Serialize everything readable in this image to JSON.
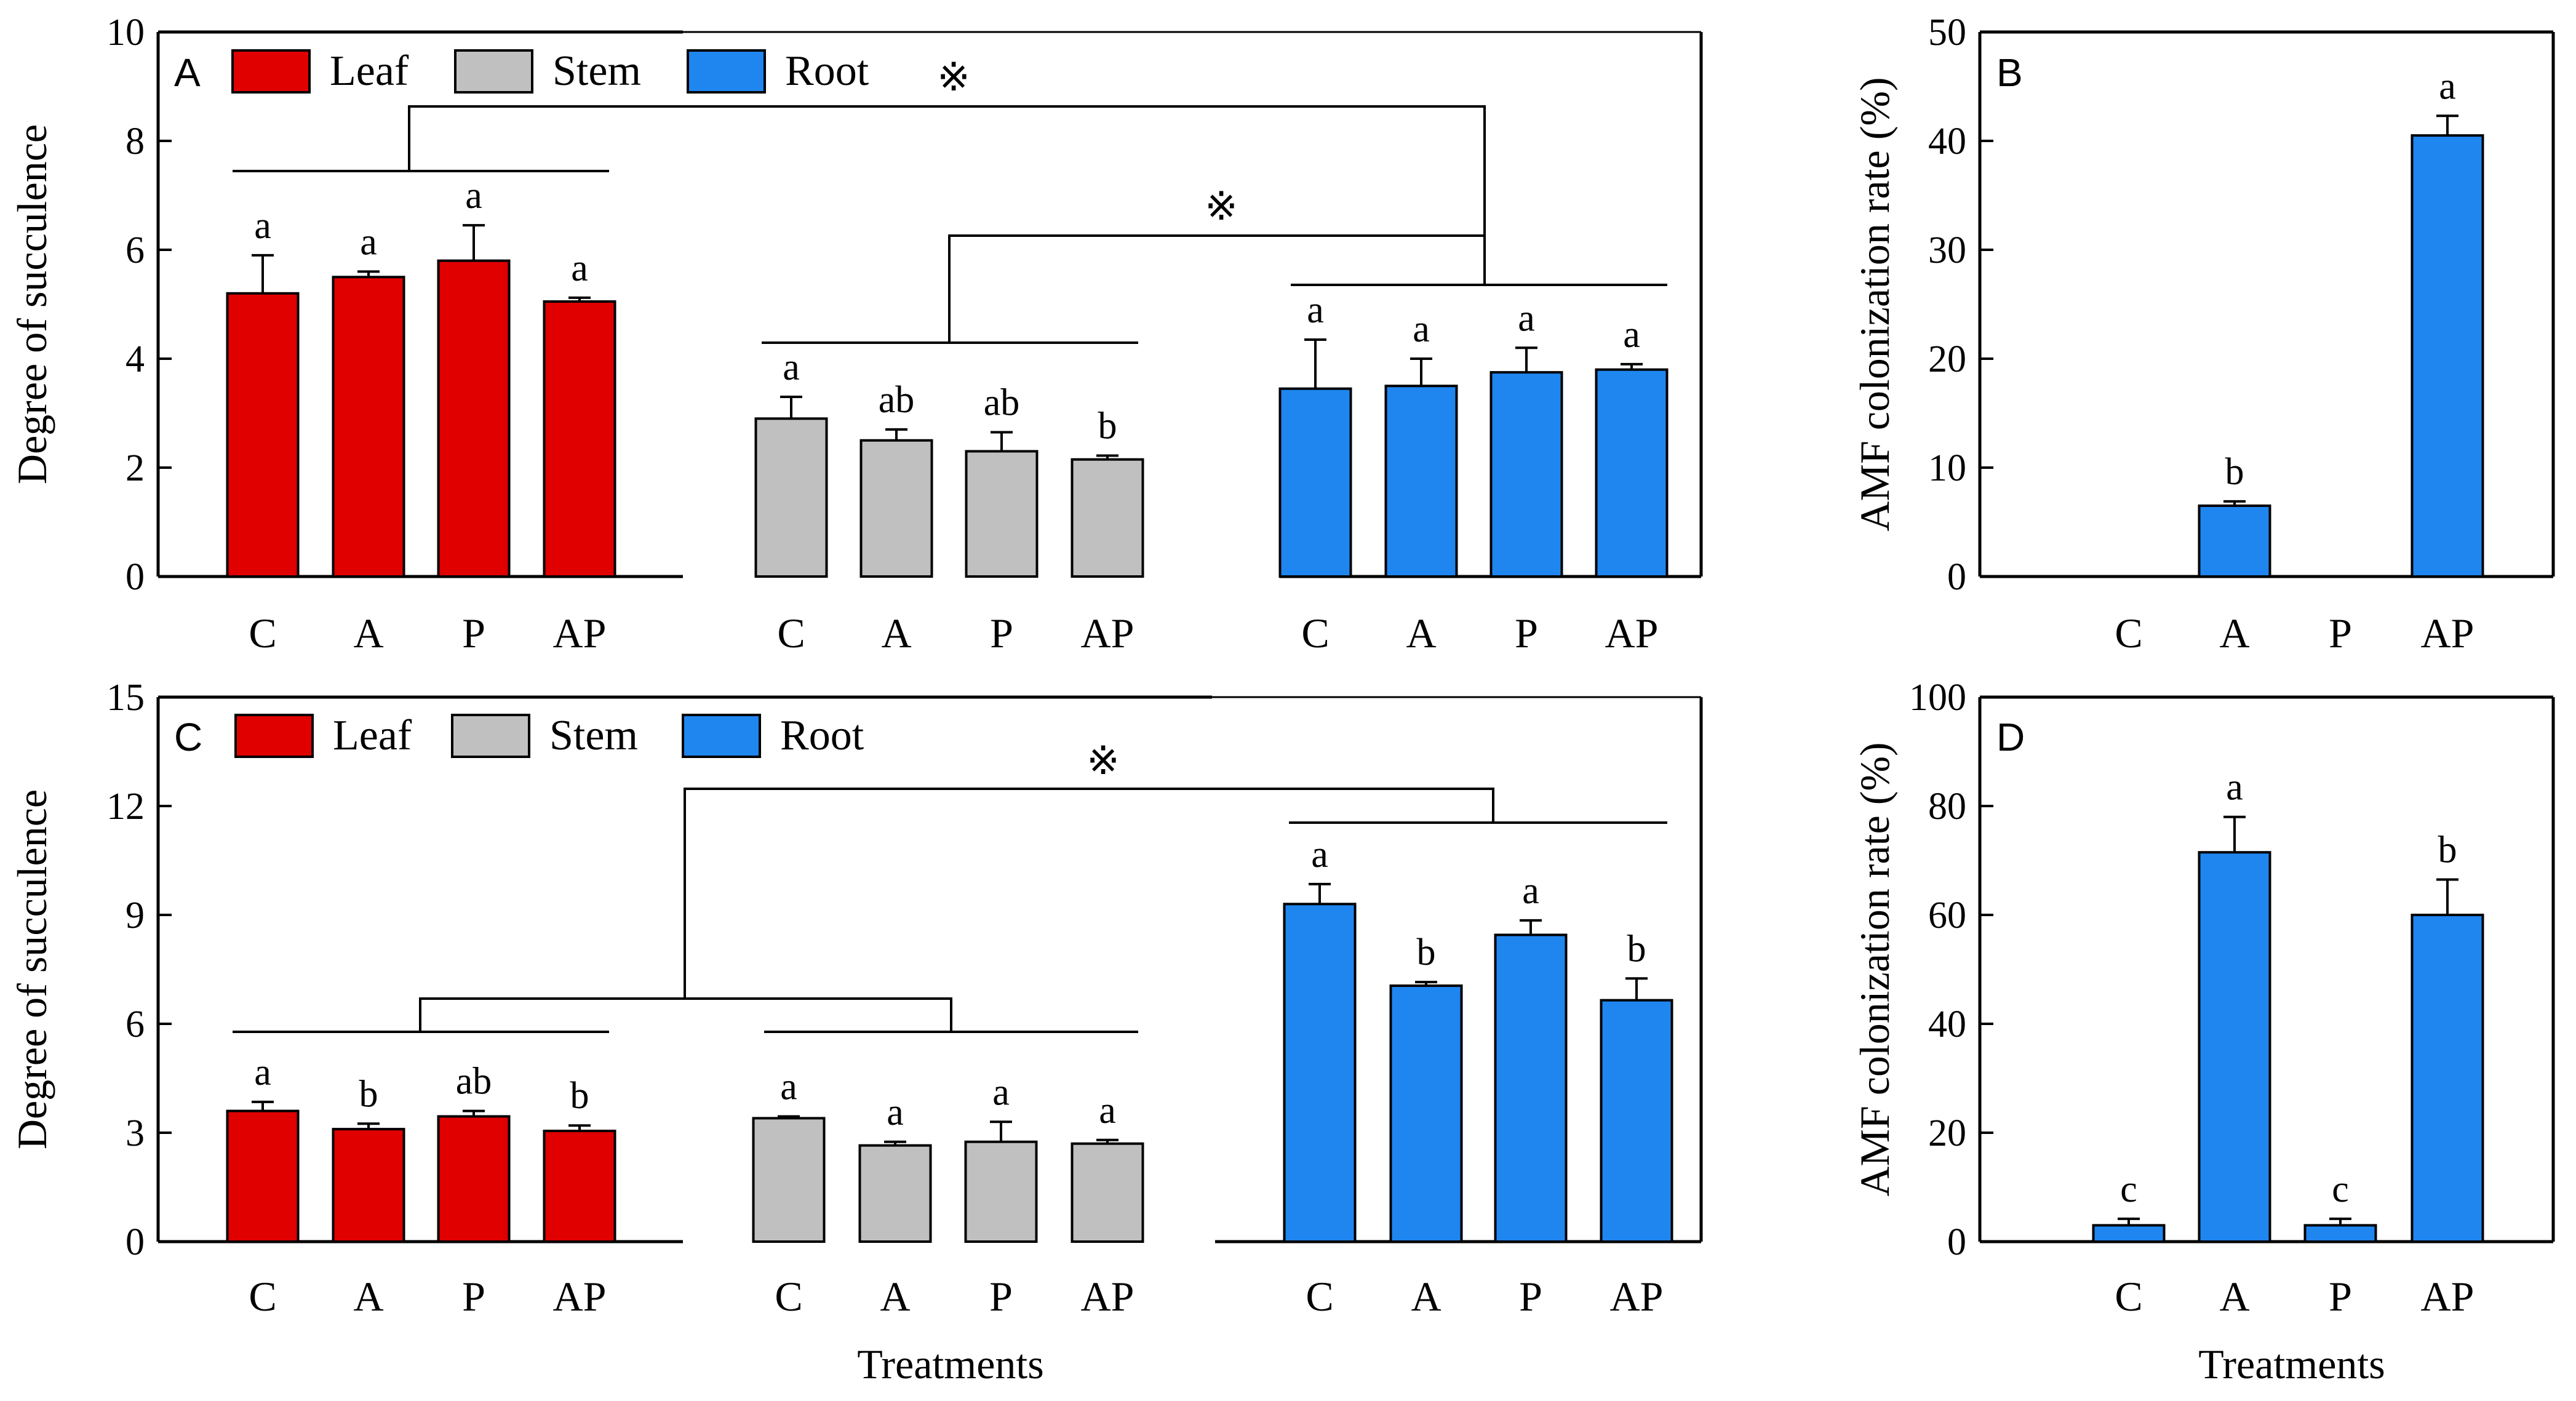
{
  "colors": {
    "Leaf": "#e00000",
    "Stem": "#c0c0c0",
    "Root": "#1f86f0",
    "axis": "#000000"
  },
  "chart_data": [
    {
      "panel": "A",
      "type": "bar",
      "ylabel": "Degree of succulence",
      "xlabel": "",
      "ylim": [
        0,
        10
      ],
      "yticks": [
        "0",
        "2",
        "4",
        "6",
        "8",
        "10"
      ],
      "legend": [
        "Leaf",
        "Stem",
        "Root"
      ],
      "significance_marks": [
        "※",
        "※"
      ],
      "groups": [
        {
          "name": "Leaf",
          "categories": [
            "C",
            "A",
            "P",
            "AP"
          ],
          "values": [
            5.2,
            5.5,
            5.8,
            5.05
          ],
          "errors": [
            0.7,
            0.1,
            0.65,
            0.07
          ],
          "letters": [
            "a",
            "a",
            "a",
            "a"
          ]
        },
        {
          "name": "Stem",
          "categories": [
            "C",
            "A",
            "P",
            "AP"
          ],
          "values": [
            2.9,
            2.5,
            2.3,
            2.15
          ],
          "errors": [
            0.4,
            0.2,
            0.35,
            0.07
          ],
          "letters": [
            "a",
            "ab",
            "ab",
            "b"
          ]
        },
        {
          "name": "Root",
          "categories": [
            "C",
            "A",
            "P",
            "AP"
          ],
          "values": [
            3.45,
            3.5,
            3.75,
            3.8
          ],
          "errors": [
            0.9,
            0.5,
            0.45,
            0.1
          ],
          "letters": [
            "a",
            "a",
            "a",
            "a"
          ]
        }
      ]
    },
    {
      "panel": "B",
      "type": "bar",
      "ylabel": "AMF colonization rate (%)",
      "xlabel": "",
      "ylim": [
        0,
        50
      ],
      "yticks": [
        "0",
        "10",
        "20",
        "30",
        "40",
        "50"
      ],
      "groups": [
        {
          "name": "Root",
          "categories": [
            "C",
            "A",
            "P",
            "AP"
          ],
          "values": [
            0,
            6.5,
            0,
            40.5
          ],
          "errors": [
            0,
            0.4,
            0,
            1.8
          ],
          "letters": [
            "",
            "b",
            "",
            "a"
          ]
        }
      ]
    },
    {
      "panel": "C",
      "type": "bar",
      "ylabel": "Degree of succulence",
      "xlabel": "Treatments",
      "ylim": [
        0,
        15
      ],
      "yticks": [
        "0",
        "3",
        "6",
        "9",
        "12",
        "15"
      ],
      "legend": [
        "Leaf",
        "Stem",
        "Root"
      ],
      "significance_marks": [
        "※"
      ],
      "groups": [
        {
          "name": "Leaf",
          "categories": [
            "C",
            "A",
            "P",
            "AP"
          ],
          "values": [
            3.6,
            3.1,
            3.45,
            3.05
          ],
          "errors": [
            0.25,
            0.15,
            0.15,
            0.15
          ],
          "letters": [
            "a",
            "b",
            "ab",
            "b"
          ]
        },
        {
          "name": "Stem",
          "categories": [
            "C",
            "A",
            "P",
            "AP"
          ],
          "values": [
            3.4,
            2.65,
            2.75,
            2.7
          ],
          "errors": [
            0.05,
            0.1,
            0.55,
            0.1
          ],
          "letters": [
            "a",
            "a",
            "a",
            "a"
          ]
        },
        {
          "name": "Root",
          "categories": [
            "C",
            "A",
            "P",
            "AP"
          ],
          "values": [
            9.3,
            7.05,
            8.45,
            6.65
          ],
          "errors": [
            0.55,
            0.1,
            0.4,
            0.6
          ],
          "letters": [
            "a",
            "b",
            "a",
            "b"
          ]
        }
      ]
    },
    {
      "panel": "D",
      "type": "bar",
      "ylabel": "AMF colonization rate (%)",
      "xlabel": "Treatments",
      "ylim": [
        0,
        100
      ],
      "yticks": [
        "0",
        "20",
        "40",
        "60",
        "80",
        "100"
      ],
      "groups": [
        {
          "name": "Root",
          "categories": [
            "C",
            "A",
            "P",
            "AP"
          ],
          "values": [
            3,
            71.5,
            3,
            60
          ],
          "errors": [
            1.2,
            6.5,
            1.2,
            6.5
          ],
          "letters": [
            "c",
            "a",
            "c",
            "b"
          ]
        }
      ]
    }
  ]
}
